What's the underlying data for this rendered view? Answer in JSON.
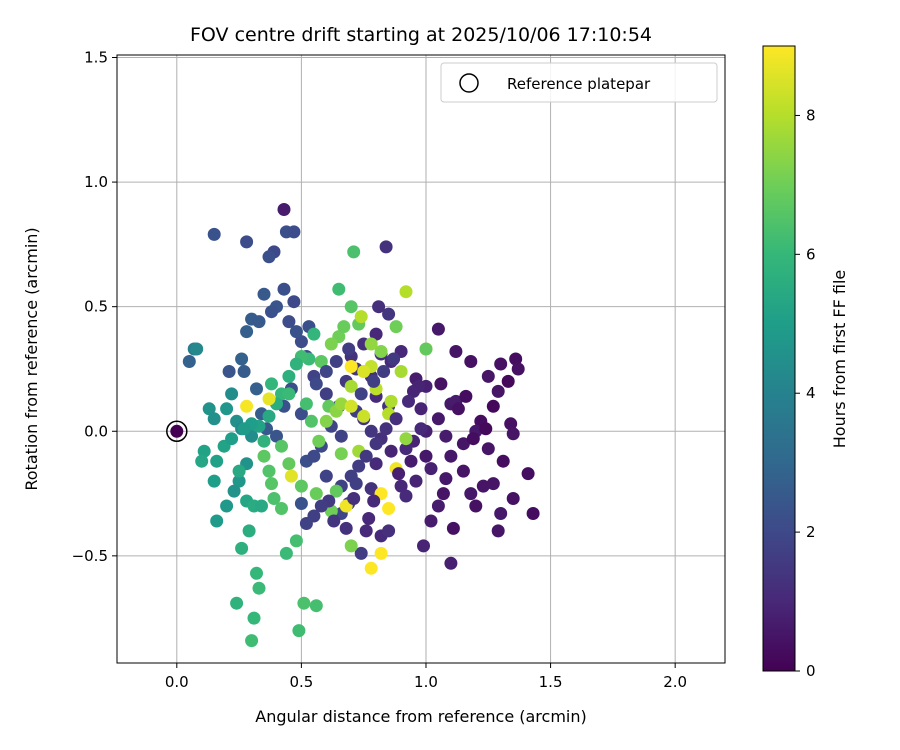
{
  "chart_data": {
    "type": "scatter",
    "title": "FOV centre drift starting at 2025/10/06 17:10:54",
    "xlabel": "Angular distance from reference (arcmin)",
    "ylabel": "Rotation from reference (arcmin)",
    "xlim": [
      -0.24,
      2.2
    ],
    "ylim": [
      -0.93,
      1.51
    ],
    "xticks": [
      0.0,
      0.5,
      1.0,
      1.5,
      2.0
    ],
    "xtick_labels": [
      "0.0",
      "0.5",
      "1.0",
      "1.5",
      "2.0"
    ],
    "yticks": [
      -0.5,
      0.0,
      0.5,
      1.0,
      1.5
    ],
    "ytick_labels": [
      "−0.5",
      "0.0",
      "0.5",
      "1.0",
      "1.5"
    ],
    "grid": true,
    "legend": {
      "label": "Reference platepar",
      "position": "top-right"
    },
    "reference_point": {
      "x": 0.0,
      "y": 0.0
    },
    "colorbar": {
      "label": "Hours from first FF file",
      "min": 0,
      "max": 9,
      "ticks": [
        0,
        2,
        4,
        6,
        8
      ],
      "tick_labels": [
        "0",
        "2",
        "4",
        "6",
        "8"
      ],
      "colormap": [
        "#440154",
        "#482878",
        "#3e4989",
        "#31688e",
        "#26828e",
        "#1f9e89",
        "#35b779",
        "#6ece58",
        "#b5de2b",
        "#fde725"
      ]
    },
    "points_columns": [
      "x",
      "y",
      "hours"
    ],
    "points": [
      [
        0.0,
        0.0,
        0.0
      ],
      [
        1.05,
        0.41,
        0.6
      ],
      [
        1.12,
        0.32,
        0.5
      ],
      [
        1.18,
        0.28,
        0.4
      ],
      [
        1.25,
        0.22,
        0.5
      ],
      [
        1.3,
        0.27,
        0.4
      ],
      [
        1.36,
        0.29,
        0.3
      ],
      [
        1.37,
        0.25,
        0.4
      ],
      [
        1.29,
        0.16,
        0.5
      ],
      [
        1.34,
        0.03,
        0.4
      ],
      [
        1.35,
        -0.01,
        0.5
      ],
      [
        1.22,
        0.04,
        0.3
      ],
      [
        1.2,
        0.0,
        0.6
      ],
      [
        1.25,
        -0.07,
        0.5
      ],
      [
        1.27,
        -0.21,
        0.5
      ],
      [
        1.43,
        -0.33,
        0.3
      ],
      [
        1.35,
        -0.27,
        0.4
      ],
      [
        1.3,
        -0.33,
        0.6
      ],
      [
        1.29,
        -0.4,
        0.5
      ],
      [
        1.11,
        -0.39,
        0.4
      ],
      [
        1.1,
        -0.53,
        0.8
      ],
      [
        0.99,
        -0.46,
        0.9
      ],
      [
        1.02,
        -0.36,
        0.7
      ],
      [
        1.05,
        -0.3,
        0.7
      ],
      [
        1.08,
        -0.19,
        0.6
      ],
      [
        1.15,
        -0.16,
        0.5
      ],
      [
        1.18,
        -0.25,
        0.6
      ],
      [
        1.23,
        -0.22,
        0.5
      ],
      [
        1.15,
        -0.05,
        0.5
      ],
      [
        1.1,
        0.11,
        0.6
      ],
      [
        1.12,
        0.12,
        0.7
      ],
      [
        1.0,
        0.18,
        0.8
      ],
      [
        0.95,
        0.16,
        0.9
      ],
      [
        0.96,
        0.21,
        0.7
      ],
      [
        0.98,
        0.09,
        0.9
      ],
      [
        1.05,
        0.05,
        0.6
      ],
      [
        1.08,
        -0.02,
        0.7
      ],
      [
        1.0,
        0.0,
        0.8
      ],
      [
        0.95,
        -0.04,
        0.9
      ],
      [
        0.92,
        -0.07,
        1.0
      ],
      [
        0.9,
        -0.22,
        1.0
      ],
      [
        0.92,
        -0.26,
        1.1
      ],
      [
        0.96,
        -0.2,
        0.9
      ],
      [
        1.02,
        -0.15,
        0.8
      ],
      [
        1.1,
        -0.1,
        0.6
      ],
      [
        0.85,
        0.1,
        1.2
      ],
      [
        0.8,
        0.14,
        1.1
      ],
      [
        0.78,
        0.22,
        1.3
      ],
      [
        0.82,
        0.31,
        1.2
      ],
      [
        0.86,
        0.28,
        1.1
      ],
      [
        0.9,
        0.32,
        1.0
      ],
      [
        0.85,
        0.47,
        1.4
      ],
      [
        0.81,
        0.5,
        1.2
      ],
      [
        0.84,
        0.74,
        1.3
      ],
      [
        0.8,
        0.39,
        1.0
      ],
      [
        0.75,
        0.35,
        1.2
      ],
      [
        0.7,
        0.3,
        1.3
      ],
      [
        0.72,
        0.25,
        1.4
      ],
      [
        0.68,
        0.2,
        1.5
      ],
      [
        0.75,
        0.05,
        1.3
      ],
      [
        0.78,
        0.0,
        1.4
      ],
      [
        0.82,
        -0.03,
        1.2
      ],
      [
        0.8,
        -0.13,
        1.1
      ],
      [
        0.78,
        -0.23,
        1.3
      ],
      [
        0.77,
        -0.35,
        1.0
      ],
      [
        0.82,
        -0.42,
        1.1
      ],
      [
        0.85,
        -0.4,
        1.2
      ],
      [
        0.74,
        -0.49,
        1.6
      ],
      [
        0.72,
        -0.21,
        1.7
      ],
      [
        0.66,
        -0.22,
        1.8
      ],
      [
        0.66,
        -0.33,
        1.9
      ],
      [
        0.69,
        -0.29,
        1.7
      ],
      [
        0.6,
        -0.18,
        1.8
      ],
      [
        0.58,
        -0.06,
        2.0
      ],
      [
        0.62,
        0.02,
        1.9
      ],
      [
        0.66,
        -0.02,
        1.8
      ],
      [
        0.72,
        0.08,
        1.7
      ],
      [
        0.65,
        0.1,
        1.6
      ],
      [
        0.6,
        0.15,
        1.7
      ],
      [
        0.55,
        0.22,
        1.8
      ],
      [
        0.52,
        0.3,
        2.0
      ],
      [
        0.5,
        0.36,
        2.1
      ],
      [
        0.53,
        0.42,
        2.2
      ],
      [
        0.48,
        0.4,
        2.3
      ],
      [
        0.45,
        0.44,
        2.1
      ],
      [
        0.47,
        0.52,
        2.0
      ],
      [
        0.43,
        0.57,
        2.2
      ],
      [
        0.4,
        0.5,
        2.4
      ],
      [
        0.38,
        0.48,
        2.3
      ],
      [
        0.35,
        0.55,
        2.5
      ],
      [
        0.3,
        0.45,
        2.6
      ],
      [
        0.33,
        0.44,
        2.5
      ],
      [
        0.28,
        0.4,
        2.7
      ],
      [
        0.26,
        0.29,
        2.8
      ],
      [
        0.27,
        0.24,
        2.6
      ],
      [
        0.32,
        0.17,
        2.7
      ],
      [
        0.34,
        0.07,
        2.6
      ],
      [
        0.36,
        0.01,
        2.5
      ],
      [
        0.4,
        -0.02,
        2.4
      ],
      [
        0.43,
        0.1,
        2.3
      ],
      [
        0.46,
        0.17,
        2.2
      ],
      [
        0.5,
        0.07,
        2.1
      ],
      [
        0.52,
        -0.12,
        2.2
      ],
      [
        0.55,
        -0.1,
        2.0
      ],
      [
        0.5,
        -0.29,
        2.3
      ],
      [
        0.44,
        0.8,
        2.2
      ],
      [
        0.47,
        0.8,
        2.1
      ],
      [
        0.43,
        0.89,
        0.7
      ],
      [
        0.39,
        0.72,
        2.0
      ],
      [
        0.37,
        0.7,
        2.2
      ],
      [
        0.28,
        0.76,
        2.1
      ],
      [
        0.15,
        0.79,
        2.3
      ],
      [
        0.21,
        0.24,
        2.4
      ],
      [
        0.05,
        0.28,
        2.8
      ],
      [
        0.07,
        0.33,
        3.8
      ],
      [
        0.08,
        0.33,
        4.2
      ],
      [
        0.13,
        0.09,
        4.6
      ],
      [
        0.15,
        0.05,
        4.5
      ],
      [
        0.2,
        0.09,
        4.7
      ],
      [
        0.22,
        0.15,
        4.4
      ],
      [
        0.24,
        0.04,
        4.5
      ],
      [
        0.26,
        0.01,
        4.3
      ],
      [
        0.3,
        -0.02,
        4.4
      ],
      [
        0.28,
        -0.13,
        4.6
      ],
      [
        0.25,
        -0.2,
        4.7
      ],
      [
        0.23,
        -0.24,
        4.6
      ],
      [
        0.2,
        -0.3,
        4.8
      ],
      [
        0.16,
        -0.36,
        4.9
      ],
      [
        0.15,
        -0.2,
        5.0
      ],
      [
        0.11,
        -0.08,
        5.2
      ],
      [
        0.1,
        -0.12,
        5.3
      ],
      [
        0.16,
        -0.12,
        5.1
      ],
      [
        0.19,
        -0.06,
        5.2
      ],
      [
        0.22,
        -0.03,
        5.0
      ],
      [
        0.25,
        -0.16,
        5.4
      ],
      [
        0.28,
        -0.28,
        5.3
      ],
      [
        0.31,
        -0.3,
        5.5
      ],
      [
        0.34,
        -0.3,
        5.4
      ],
      [
        0.29,
        -0.4,
        5.6
      ],
      [
        0.26,
        -0.47,
        5.7
      ],
      [
        0.24,
        -0.69,
        5.8
      ],
      [
        0.32,
        -0.57,
        6.0
      ],
      [
        0.33,
        -0.63,
        6.1
      ],
      [
        0.31,
        -0.75,
        6.0
      ],
      [
        0.3,
        -0.84,
        6.2
      ],
      [
        0.44,
        -0.49,
        6.1
      ],
      [
        0.48,
        -0.44,
        6.3
      ],
      [
        0.49,
        -0.8,
        6.2
      ],
      [
        0.51,
        -0.69,
        6.4
      ],
      [
        0.56,
        -0.7,
        6.3
      ],
      [
        0.42,
        -0.31,
        6.5
      ],
      [
        0.39,
        -0.27,
        6.4
      ],
      [
        0.38,
        -0.21,
        6.6
      ],
      [
        0.37,
        -0.16,
        6.5
      ],
      [
        0.35,
        -0.1,
        6.7
      ],
      [
        0.42,
        -0.06,
        6.6
      ],
      [
        0.45,
        -0.13,
        6.8
      ],
      [
        0.5,
        -0.22,
        6.7
      ],
      [
        0.56,
        -0.25,
        6.9
      ],
      [
        0.62,
        -0.32,
        7.0
      ],
      [
        0.64,
        -0.24,
        6.8
      ],
      [
        0.66,
        -0.09,
        7.1
      ],
      [
        0.7,
        -0.46,
        7.2
      ],
      [
        0.71,
        0.72,
        6.4
      ],
      [
        0.65,
        0.57,
        6.2
      ],
      [
        0.7,
        0.5,
        6.6
      ],
      [
        0.73,
        0.43,
        6.8
      ],
      [
        0.65,
        0.38,
        7.0
      ],
      [
        0.67,
        0.42,
        6.9
      ],
      [
        0.62,
        0.35,
        7.2
      ],
      [
        0.58,
        0.28,
        6.7
      ],
      [
        0.6,
        0.04,
        7.3
      ],
      [
        0.57,
        -0.04,
        7.0
      ],
      [
        0.55,
        0.39,
        5.9
      ],
      [
        0.53,
        0.29,
        6.1
      ],
      [
        0.5,
        0.3,
        6.2
      ],
      [
        0.48,
        0.27,
        5.8
      ],
      [
        0.45,
        0.22,
        5.7
      ],
      [
        0.42,
        0.15,
        6.0
      ],
      [
        0.4,
        0.11,
        5.6
      ],
      [
        0.37,
        0.06,
        5.4
      ],
      [
        0.33,
        0.02,
        5.2
      ],
      [
        0.3,
        0.03,
        5.0
      ],
      [
        0.27,
        0.01,
        4.9
      ],
      [
        0.35,
        -0.04,
        5.8
      ],
      [
        0.38,
        0.19,
        5.9
      ],
      [
        0.45,
        0.15,
        6.1
      ],
      [
        0.52,
        0.11,
        6.3
      ],
      [
        0.54,
        0.04,
        6.5
      ],
      [
        0.61,
        0.1,
        6.8
      ],
      [
        0.64,
        0.08,
        7.4
      ],
      [
        0.66,
        0.11,
        7.6
      ],
      [
        0.7,
        0.18,
        7.8
      ],
      [
        0.74,
        0.46,
        8.0
      ],
      [
        0.78,
        0.26,
        8.2
      ],
      [
        0.8,
        0.17,
        8.1
      ],
      [
        0.86,
        0.12,
        7.9
      ],
      [
        0.88,
        0.42,
        7.0
      ],
      [
        0.92,
        0.56,
        8.0
      ],
      [
        0.9,
        0.24,
        7.8
      ],
      [
        0.92,
        -0.03,
        7.5
      ],
      [
        0.85,
        0.07,
        8.0
      ],
      [
        0.75,
        0.06,
        8.3
      ],
      [
        0.73,
        -0.08,
        7.7
      ],
      [
        0.7,
        0.1,
        8.4
      ],
      [
        0.68,
        -0.3,
        8.8
      ],
      [
        0.7,
        0.26,
        9.0
      ],
      [
        0.75,
        0.24,
        8.5
      ],
      [
        0.82,
        -0.25,
        9.0
      ],
      [
        0.85,
        -0.31,
        9.0
      ],
      [
        0.88,
        -0.15,
        8.8
      ],
      [
        0.82,
        -0.49,
        9.0
      ],
      [
        0.78,
        -0.55,
        9.0
      ],
      [
        0.28,
        0.1,
        8.9
      ],
      [
        0.37,
        0.13,
        8.7
      ],
      [
        0.46,
        -0.18,
        8.6
      ],
      [
        1.0,
        0.33,
        9.0
      ],
      [
        1.0,
        0.33,
        6.8
      ],
      [
        0.82,
        0.32,
        7.3
      ],
      [
        0.78,
        0.35,
        7.5
      ],
      [
        0.98,
        0.01,
        1.0
      ],
      [
        0.97,
        0.18,
        0.9
      ],
      [
        0.93,
        0.12,
        1.1
      ],
      [
        0.88,
        0.05,
        1.2
      ],
      [
        0.84,
        0.01,
        1.3
      ],
      [
        0.8,
        -0.05,
        1.4
      ],
      [
        0.76,
        -0.1,
        1.5
      ],
      [
        0.73,
        -0.14,
        1.6
      ],
      [
        0.7,
        -0.18,
        1.7
      ],
      [
        0.87,
        0.29,
        1.5
      ],
      [
        0.83,
        0.24,
        1.6
      ],
      [
        0.79,
        0.2,
        1.7
      ],
      [
        0.74,
        0.15,
        1.8
      ],
      [
        0.69,
        0.33,
        1.6
      ],
      [
        0.64,
        0.28,
        1.7
      ],
      [
        0.6,
        0.24,
        1.9
      ],
      [
        0.56,
        0.19,
        2.0
      ],
      [
        1.06,
        0.19,
        0.4
      ],
      [
        1.13,
        0.09,
        0.4
      ],
      [
        1.19,
        -0.03,
        0.3
      ],
      [
        1.24,
        0.01,
        0.2
      ],
      [
        1.31,
        -0.12,
        0.3
      ],
      [
        1.16,
        0.14,
        0.3
      ],
      [
        1.27,
        0.1,
        0.2
      ],
      [
        1.33,
        0.2,
        0.2
      ],
      [
        1.41,
        -0.17,
        0.3
      ],
      [
        1.2,
        -0.3,
        0.4
      ],
      [
        1.07,
        -0.25,
        0.5
      ],
      [
        1.0,
        -0.1,
        0.6
      ],
      [
        0.94,
        -0.12,
        0.7
      ],
      [
        0.89,
        -0.17,
        0.8
      ],
      [
        0.86,
        -0.08,
        0.9
      ],
      [
        0.79,
        -0.28,
        1.0
      ],
      [
        0.76,
        -0.4,
        1.1
      ],
      [
        0.71,
        -0.27,
        1.2
      ],
      [
        0.68,
        -0.39,
        1.3
      ],
      [
        0.63,
        -0.36,
        1.4
      ],
      [
        0.61,
        -0.28,
        1.5
      ],
      [
        0.58,
        -0.3,
        1.6
      ],
      [
        0.55,
        -0.34,
        1.7
      ],
      [
        0.52,
        -0.37,
        1.8
      ]
    ]
  }
}
